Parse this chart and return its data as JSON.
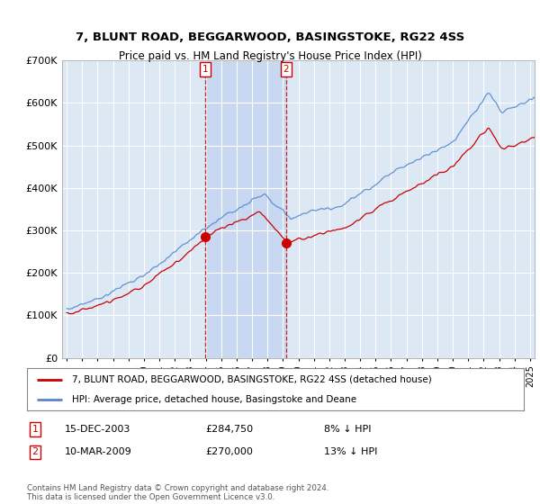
{
  "title": "7, BLUNT ROAD, BEGGARWOOD, BASINGSTOKE, RG22 4SS",
  "subtitle": "Price paid vs. HM Land Registry's House Price Index (HPI)",
  "ylim": [
    0,
    700000
  ],
  "yticks": [
    0,
    100000,
    200000,
    300000,
    400000,
    500000,
    600000,
    700000
  ],
  "ytick_labels": [
    "£0",
    "£100K",
    "£200K",
    "£300K",
    "£400K",
    "£500K",
    "£600K",
    "£700K"
  ],
  "property_color": "#cc0000",
  "hpi_color": "#5588cc",
  "purchase1_year": 2003.96,
  "purchase1_price": 284750,
  "purchase2_year": 2009.19,
  "purchase2_price": 270000,
  "legend_property": "7, BLUNT ROAD, BEGGARWOOD, BASINGSTOKE, RG22 4SS (detached house)",
  "legend_hpi": "HPI: Average price, detached house, Basingstoke and Deane",
  "annotation1_date": "15-DEC-2003",
  "annotation1_price": "£284,750",
  "annotation1_hpi": "8% ↓ HPI",
  "annotation2_date": "10-MAR-2009",
  "annotation2_price": "£270,000",
  "annotation2_hpi": "13% ↓ HPI",
  "footer": "Contains HM Land Registry data © Crown copyright and database right 2024.\nThis data is licensed under the Open Government Licence v3.0.",
  "chart_bg": "#dde8f5",
  "fig_bg": "#ffffff",
  "shade_color": "#c8d8f0",
  "grid_color": "#ffffff",
  "xmin": 1994.7,
  "xmax": 2025.3
}
